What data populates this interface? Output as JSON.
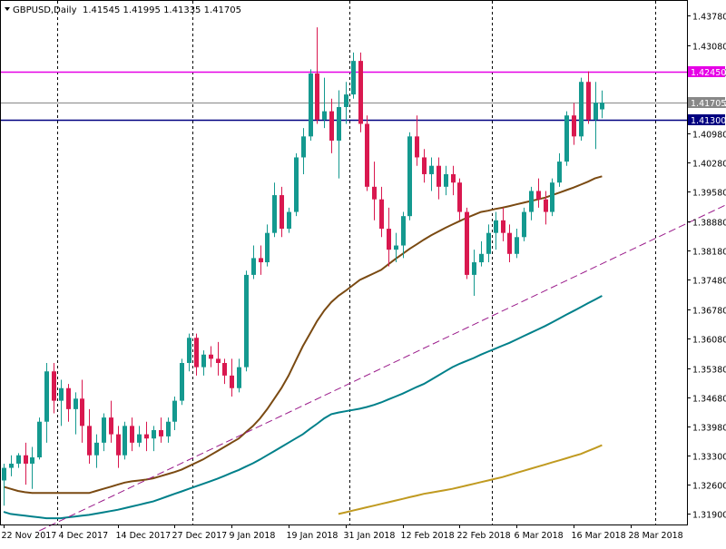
{
  "header": {
    "symbol_title": "GBPUSD,Daily",
    "ohlc": "1.41545 1.41995 1.41335 1.41705"
  },
  "chart_data": {
    "type": "candlestick",
    "ylim": [
      1.3165,
      1.4413
    ],
    "y_ticks": [
      1.4378,
      1.4308,
      1.4245,
      1.4168,
      1.4098,
      1.4028,
      1.3958,
      1.3888,
      1.3818,
      1.3748,
      1.3678,
      1.3608,
      1.3538,
      1.3468,
      1.3398,
      1.333,
      1.326,
      1.319
    ],
    "y_tick_labels": [
      "1.43780",
      "1.43080",
      "1.42450",
      "1.41705",
      "1.40980",
      "1.40280",
      "1.39580",
      "1.38880",
      "1.38180",
      "1.37480",
      "1.36780",
      "1.36080",
      "1.35380",
      "1.34680",
      "1.33980",
      "1.33300",
      "1.32600",
      "1.31900"
    ],
    "x_labels": [
      "22 Nov 2017",
      "4 Dec 2017",
      "14 Dec 2017",
      "27 Dec 2017",
      "9 Jan 2018",
      "19 Jan 2018",
      "31 Jan 2018",
      "12 Feb 2018",
      "22 Feb 2018",
      "6 Mar 2018",
      "16 Mar 2018",
      "28 Mar 2018"
    ],
    "x_label_bars": [
      0,
      8,
      16,
      24,
      32,
      40,
      48,
      56,
      64,
      72,
      80,
      88
    ],
    "period_separator_bars": [
      7.5,
      26.5,
      48.5,
      68.5,
      91.5
    ],
    "horizontal_levels": [
      {
        "value": 1.4245,
        "label": "1.42450",
        "color": "#e600e6"
      },
      {
        "value": 1.413,
        "label": "1.41300",
        "color": "#000080"
      },
      {
        "value": 1.41705,
        "label": "1.41705",
        "color": "#888888"
      }
    ],
    "candles": [
      [
        1.327,
        1.331,
        1.321,
        1.33
      ],
      [
        1.33,
        1.333,
        1.328,
        1.331
      ],
      [
        1.331,
        1.3335,
        1.33,
        1.333
      ],
      [
        1.333,
        1.336,
        1.326,
        1.331
      ],
      [
        1.331,
        1.335,
        1.325,
        1.3325
      ],
      [
        1.3325,
        1.342,
        1.332,
        1.341
      ],
      [
        1.341,
        1.355,
        1.336,
        1.353
      ],
      [
        1.353,
        1.355,
        1.343,
        1.346
      ],
      [
        1.346,
        1.351,
        1.34,
        1.349
      ],
      [
        1.349,
        1.35,
        1.341,
        1.344
      ],
      [
        1.344,
        1.348,
        1.338,
        1.3465
      ],
      [
        1.3465,
        1.351,
        1.336,
        1.34
      ],
      [
        1.34,
        1.344,
        1.331,
        1.333
      ],
      [
        1.333,
        1.338,
        1.33,
        1.336
      ],
      [
        1.336,
        1.343,
        1.334,
        1.342
      ],
      [
        1.342,
        1.346,
        1.336,
        1.338
      ],
      [
        1.338,
        1.34,
        1.33,
        1.333
      ],
      [
        1.333,
        1.341,
        1.332,
        1.34
      ],
      [
        1.34,
        1.342,
        1.334,
        1.336
      ],
      [
        1.336,
        1.34,
        1.335,
        1.338
      ],
      [
        1.338,
        1.341,
        1.334,
        1.337
      ],
      [
        1.337,
        1.34,
        1.334,
        1.339
      ],
      [
        1.339,
        1.342,
        1.336,
        1.3375
      ],
      [
        1.3375,
        1.342,
        1.336,
        1.341
      ],
      [
        1.341,
        1.347,
        1.339,
        1.346
      ],
      [
        1.346,
        1.356,
        1.345,
        1.355
      ],
      [
        1.355,
        1.362,
        1.353,
        1.361
      ],
      [
        1.361,
        1.362,
        1.352,
        1.354
      ],
      [
        1.354,
        1.358,
        1.352,
        1.357
      ],
      [
        1.357,
        1.359,
        1.354,
        1.356
      ],
      [
        1.356,
        1.36,
        1.352,
        1.355
      ],
      [
        1.355,
        1.356,
        1.35,
        1.352
      ],
      [
        1.352,
        1.356,
        1.347,
        1.349
      ],
      [
        1.349,
        1.356,
        1.348,
        1.354
      ],
      [
        1.354,
        1.377,
        1.353,
        1.376
      ],
      [
        1.376,
        1.383,
        1.375,
        1.38
      ],
      [
        1.38,
        1.383,
        1.376,
        1.379
      ],
      [
        1.379,
        1.388,
        1.378,
        1.386
      ],
      [
        1.386,
        1.398,
        1.385,
        1.395
      ],
      [
        1.395,
        1.397,
        1.385,
        1.387
      ],
      [
        1.387,
        1.392,
        1.386,
        1.391
      ],
      [
        1.391,
        1.405,
        1.39,
        1.404
      ],
      [
        1.404,
        1.411,
        1.4,
        1.409
      ],
      [
        1.409,
        1.425,
        1.408,
        1.424
      ],
      [
        1.424,
        1.435,
        1.412,
        1.413
      ],
      [
        1.413,
        1.423,
        1.411,
        1.415
      ],
      [
        1.415,
        1.418,
        1.405,
        1.408
      ],
      [
        1.408,
        1.42,
        1.399,
        1.416
      ],
      [
        1.416,
        1.422,
        1.412,
        1.419
      ],
      [
        1.419,
        1.429,
        1.418,
        1.427
      ],
      [
        1.427,
        1.429,
        1.41,
        1.412
      ],
      [
        1.412,
        1.414,
        1.396,
        1.397
      ],
      [
        1.397,
        1.403,
        1.389,
        1.394
      ],
      [
        1.394,
        1.397,
        1.385,
        1.387
      ],
      [
        1.387,
        1.392,
        1.378,
        1.382
      ],
      [
        1.382,
        1.386,
        1.379,
        1.383
      ],
      [
        1.383,
        1.391,
        1.38,
        1.39
      ],
      [
        1.39,
        1.41,
        1.389,
        1.409
      ],
      [
        1.409,
        1.414,
        1.402,
        1.404
      ],
      [
        1.404,
        1.406,
        1.398,
        1.4
      ],
      [
        1.4,
        1.404,
        1.396,
        1.402
      ],
      [
        1.402,
        1.404,
        1.394,
        1.397
      ],
      [
        1.397,
        1.402,
        1.395,
        1.4
      ],
      [
        1.4,
        1.402,
        1.395,
        1.398
      ],
      [
        1.398,
        1.399,
        1.389,
        1.391
      ],
      [
        1.391,
        1.392,
        1.375,
        1.376
      ],
      [
        1.376,
        1.382,
        1.371,
        1.379
      ],
      [
        1.379,
        1.384,
        1.378,
        1.381
      ],
      [
        1.381,
        1.388,
        1.379,
        1.386
      ],
      [
        1.386,
        1.391,
        1.382,
        1.389
      ],
      [
        1.389,
        1.392,
        1.384,
        1.386
      ],
      [
        1.386,
        1.388,
        1.379,
        1.381
      ],
      [
        1.381,
        1.387,
        1.38,
        1.385
      ],
      [
        1.385,
        1.392,
        1.384,
        1.391
      ],
      [
        1.391,
        1.397,
        1.389,
        1.396
      ],
      [
        1.396,
        1.399,
        1.392,
        1.394
      ],
      [
        1.394,
        1.396,
        1.388,
        1.391
      ],
      [
        1.391,
        1.399,
        1.39,
        1.398
      ],
      [
        1.398,
        1.405,
        1.397,
        1.403
      ],
      [
        1.403,
        1.415,
        1.402,
        1.414
      ],
      [
        1.414,
        1.417,
        1.407,
        1.409
      ],
      [
        1.409,
        1.423,
        1.408,
        1.422
      ],
      [
        1.422,
        1.4245,
        1.412,
        1.413
      ],
      [
        1.413,
        1.422,
        1.406,
        1.41705
      ],
      [
        1.41545,
        1.41995,
        1.41335,
        1.41705
      ]
    ],
    "moving_averages": [
      {
        "color": "#7a4a12",
        "values": [
          1.3255,
          1.325,
          1.3245,
          1.3242,
          1.324,
          1.324,
          1.324,
          1.324,
          1.324,
          1.324,
          1.324,
          1.324,
          1.324,
          1.3245,
          1.325,
          1.3255,
          1.326,
          1.3265,
          1.3268,
          1.327,
          1.3272,
          1.3275,
          1.328,
          1.3285,
          1.329,
          1.3296,
          1.3304,
          1.3312,
          1.332,
          1.333,
          1.334,
          1.335,
          1.336,
          1.337,
          1.3385,
          1.34,
          1.3418,
          1.344,
          1.3465,
          1.349,
          1.352,
          1.3555,
          1.359,
          1.362,
          1.365,
          1.3675,
          1.3695,
          1.371,
          1.3722,
          1.3735,
          1.3748,
          1.3756,
          1.3764,
          1.3772,
          1.3785,
          1.3798,
          1.381,
          1.3822,
          1.3833,
          1.3844,
          1.3854,
          1.3863,
          1.3872,
          1.388,
          1.3888,
          1.3896,
          1.3903,
          1.391,
          1.3913,
          1.3917,
          1.392,
          1.3924,
          1.3928,
          1.3932,
          1.3936,
          1.394,
          1.3944,
          1.395,
          1.3956,
          1.3962,
          1.3968,
          1.3975,
          1.3982,
          1.399,
          1.3995
        ]
      },
      {
        "color": "#00808a",
        "values": [
          1.3195,
          1.319,
          1.3188,
          1.3186,
          1.3184,
          1.3182,
          1.318,
          1.318,
          1.318,
          1.3182,
          1.3184,
          1.3186,
          1.3188,
          1.3191,
          1.3194,
          1.3197,
          1.32,
          1.3204,
          1.3208,
          1.3212,
          1.3216,
          1.322,
          1.3226,
          1.3232,
          1.3238,
          1.3244,
          1.325,
          1.3256,
          1.3262,
          1.3268,
          1.3274,
          1.3281,
          1.3288,
          1.3295,
          1.3303,
          1.3311,
          1.332,
          1.333,
          1.334,
          1.335,
          1.336,
          1.337,
          1.338,
          1.3393,
          1.3405,
          1.3418,
          1.3428,
          1.3432,
          1.3435,
          1.3438,
          1.3441,
          1.3445,
          1.345,
          1.3456,
          1.3463,
          1.347,
          1.3477,
          1.3485,
          1.3493,
          1.35,
          1.351,
          1.352,
          1.353,
          1.354,
          1.3548,
          1.3555,
          1.3562,
          1.357,
          1.3577,
          1.3584,
          1.3591,
          1.3598,
          1.3606,
          1.3614,
          1.3622,
          1.363,
          1.3638,
          1.3647,
          1.3656,
          1.3665,
          1.3674,
          1.3683,
          1.3692,
          1.3701,
          1.371
        ]
      },
      {
        "color": "#c09a20",
        "values": [
          null,
          null,
          null,
          null,
          null,
          null,
          null,
          null,
          null,
          null,
          null,
          null,
          null,
          null,
          null,
          null,
          null,
          null,
          null,
          null,
          null,
          null,
          null,
          null,
          null,
          null,
          null,
          null,
          null,
          null,
          null,
          null,
          null,
          null,
          null,
          null,
          null,
          null,
          null,
          null,
          null,
          null,
          null,
          null,
          null,
          null,
          null,
          1.319,
          1.3194,
          1.3198,
          1.3202,
          1.3206,
          1.321,
          1.3214,
          1.3218,
          1.3222,
          1.3226,
          1.323,
          1.3234,
          1.3238,
          1.3241,
          1.3244,
          1.3247,
          1.325,
          1.3254,
          1.3258,
          1.3262,
          1.3266,
          1.327,
          1.3274,
          1.3278,
          1.3283,
          1.3288,
          1.3293,
          1.3298,
          1.3303,
          1.3308,
          1.3313,
          1.3318,
          1.3323,
          1.3328,
          1.3333,
          1.334,
          1.3347,
          1.3354
        ]
      }
    ],
    "trendline": {
      "color": "#9a1a8a",
      "from": [
        5,
        1.315
      ],
      "to": [
        107,
        1.3972
      ]
    }
  }
}
